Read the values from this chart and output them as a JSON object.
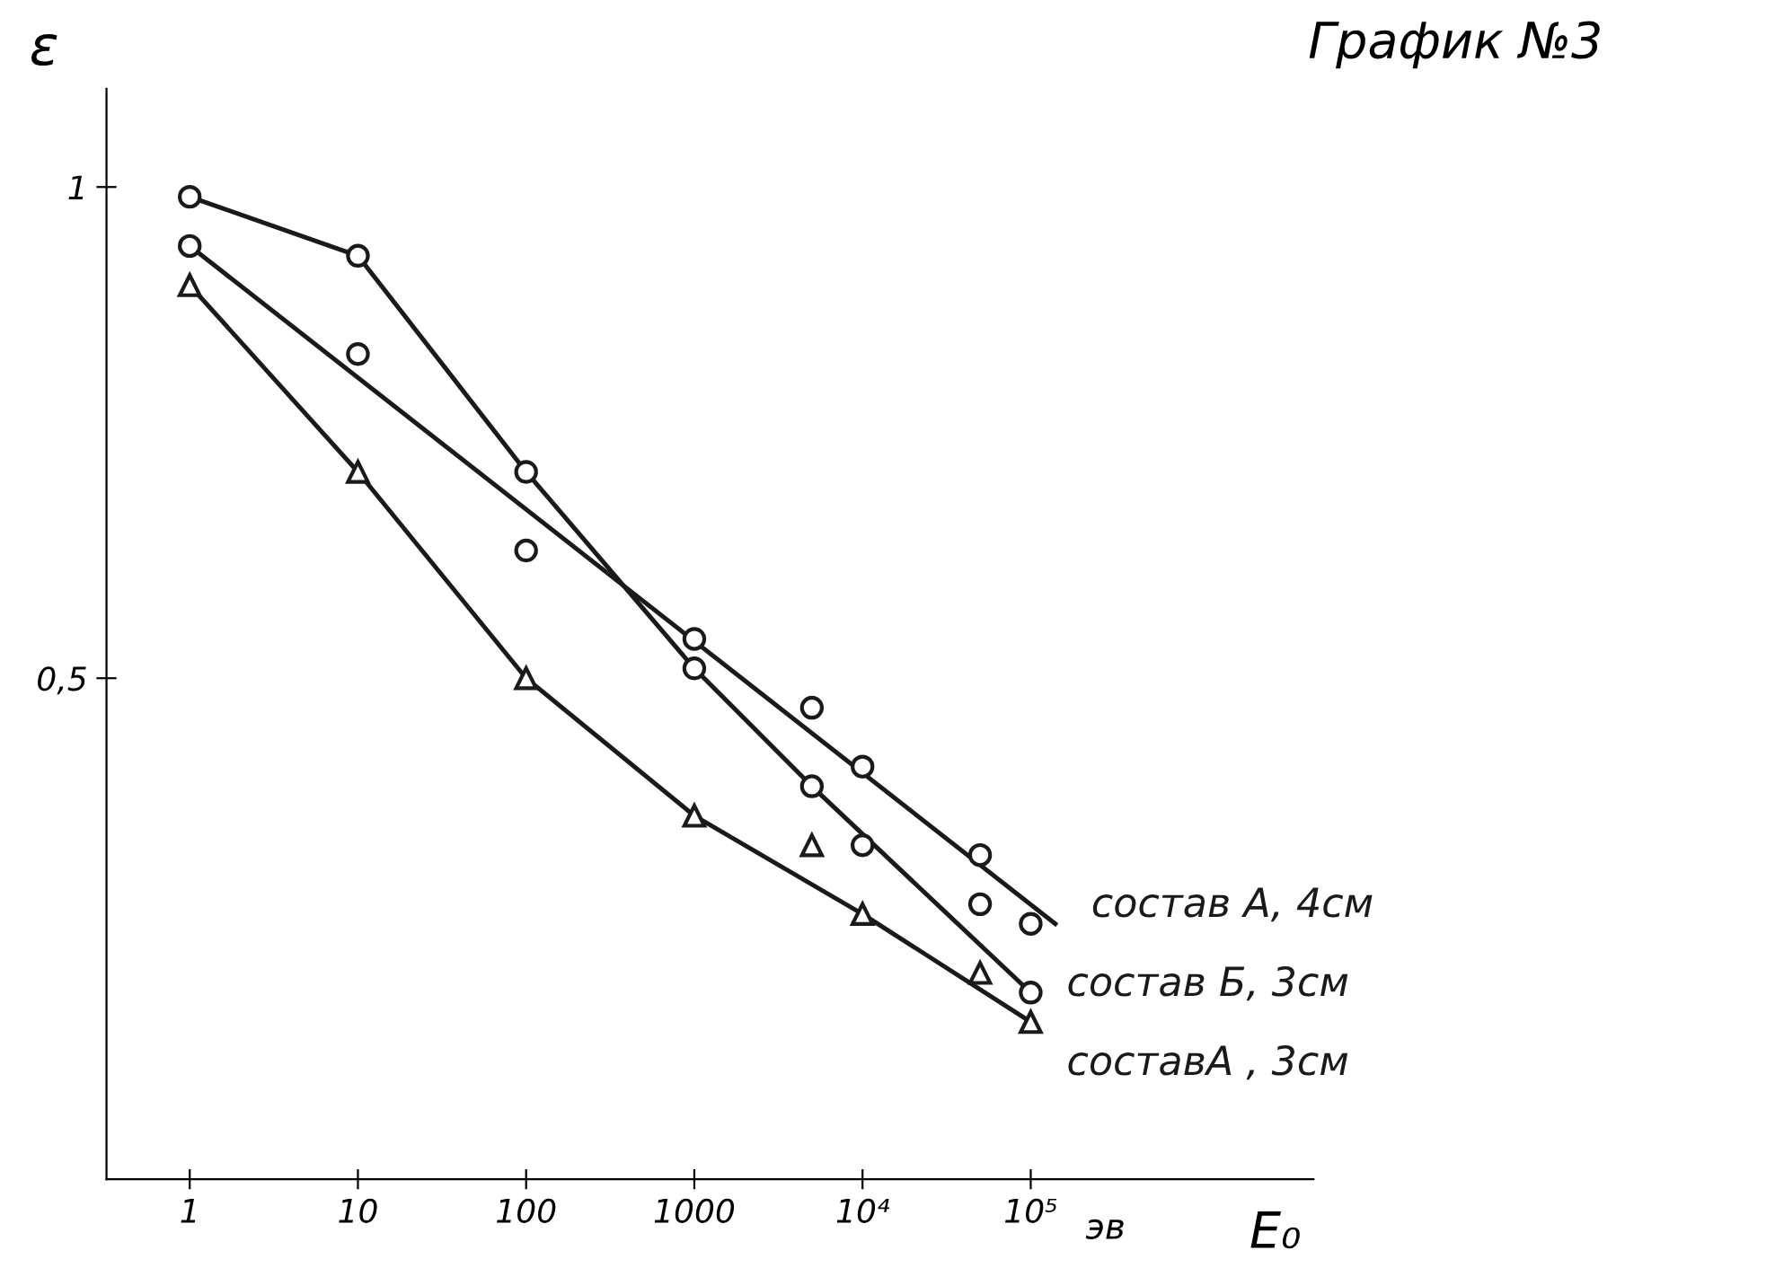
{
  "chart_data": {
    "type": "line",
    "title": "График №3",
    "xlabel": "E₀",
    "ylabel": "ε",
    "log": "x",
    "xlim": [
      0.32,
      4800000
    ],
    "ylim": [
      -0.01,
      1.1
    ],
    "xticks": [
      1,
      10,
      100,
      1000,
      {
        "value": 10000,
        "label": "10⁴"
      },
      {
        "value": 100000,
        "label": "10⁵"
      }
    ],
    "annotations": [
      "эв"
    ],
    "yticks": [
      {
        "value": 0.5,
        "label": "0,5"
      },
      1
    ],
    "series": [
      {
        "name": "состав А, 4см",
        "color": "#1a1a1a",
        "marker": "none",
        "x": [
          1,
          140000
        ],
        "values": [
          0.94,
          0.25
        ]
      },
      {
        "type": "scatter",
        "color": "#1a1a1a",
        "marker": "circle",
        "x": [
          1,
          10,
          100,
          1000,
          5000,
          10000,
          50000,
          100000
        ],
        "values": [
          0.94,
          0.83,
          0.63,
          0.54,
          0.47,
          0.41,
          0.32,
          0.25
        ]
      },
      {
        "name": "состав Б, 3см",
        "color": "#1a1a1a",
        "marker": "circle",
        "x": [
          1,
          10,
          100,
          1000,
          5000,
          100000
        ],
        "values": [
          0.99,
          0.93,
          0.71,
          0.51,
          0.39,
          0.18
        ]
      },
      {
        "type": "scatter",
        "color": "#1a1a1a",
        "marker": "circle",
        "x": [
          10000,
          50000
        ],
        "values": [
          0.33,
          0.27
        ]
      },
      {
        "name": "составА , 3см",
        "color": "#1a1a1a",
        "marker": "triangle",
        "x": [
          1,
          10,
          100,
          1000,
          10000,
          100000
        ],
        "values": [
          0.9,
          0.71,
          0.5,
          0.36,
          0.26,
          0.15
        ]
      },
      {
        "type": "scatter",
        "color": "#1a1a1a",
        "marker": "triangle",
        "x": [
          5000,
          50000
        ],
        "values": [
          0.33,
          0.2
        ]
      }
    ]
  }
}
